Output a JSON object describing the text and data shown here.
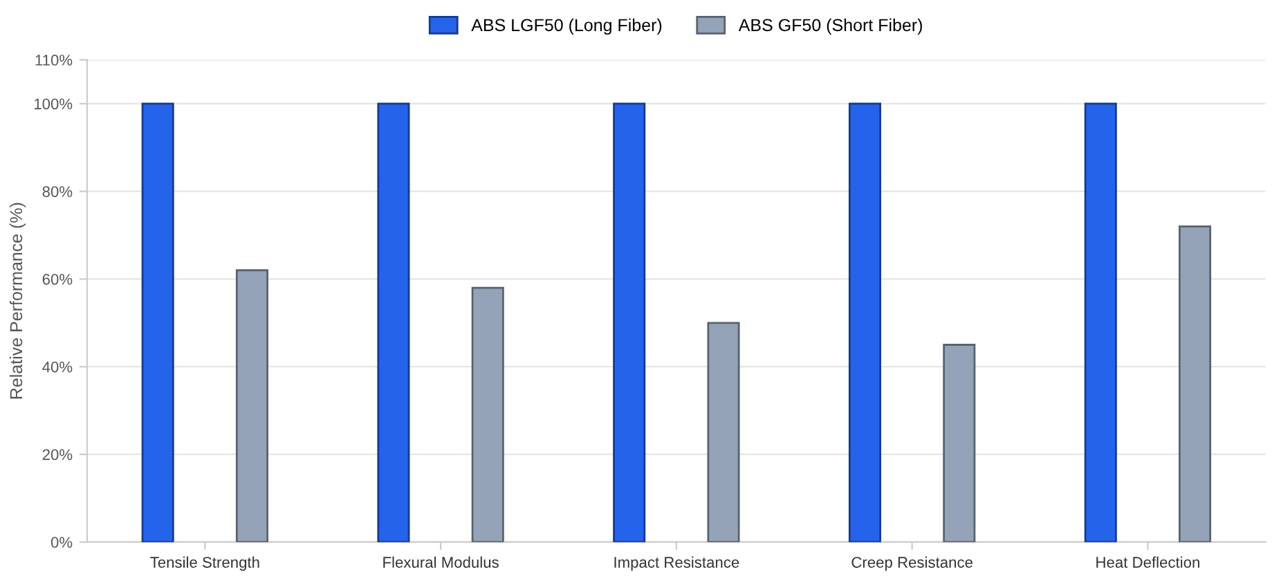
{
  "chart_data": {
    "type": "bar",
    "ylabel": "Relative Performance (%)",
    "categories": [
      "Tensile Strength",
      "Flexural Modulus",
      "Impact Resistance",
      "Creep Resistance",
      "Heat Deflection"
    ],
    "series": [
      {
        "name": "ABS LGF50 (Long Fiber)",
        "color": "#2563eb",
        "values": [
          100,
          100,
          100,
          100,
          100
        ]
      },
      {
        "name": "ABS GF50 (Short Fiber)",
        "color": "#94a3b8",
        "values": [
          62,
          58,
          50,
          45,
          72
        ]
      }
    ],
    "ylim": [
      0,
      110
    ],
    "yticks": [
      {
        "value": 0,
        "label": "0%"
      },
      {
        "value": 20,
        "label": "20%"
      },
      {
        "value": 40,
        "label": "40%"
      },
      {
        "value": 60,
        "label": "60%"
      },
      {
        "value": 80,
        "label": "80%"
      },
      {
        "value": 100,
        "label": "100%"
      },
      {
        "value": 110,
        "label": "110%"
      }
    ],
    "grid": "y",
    "legend": "top"
  }
}
